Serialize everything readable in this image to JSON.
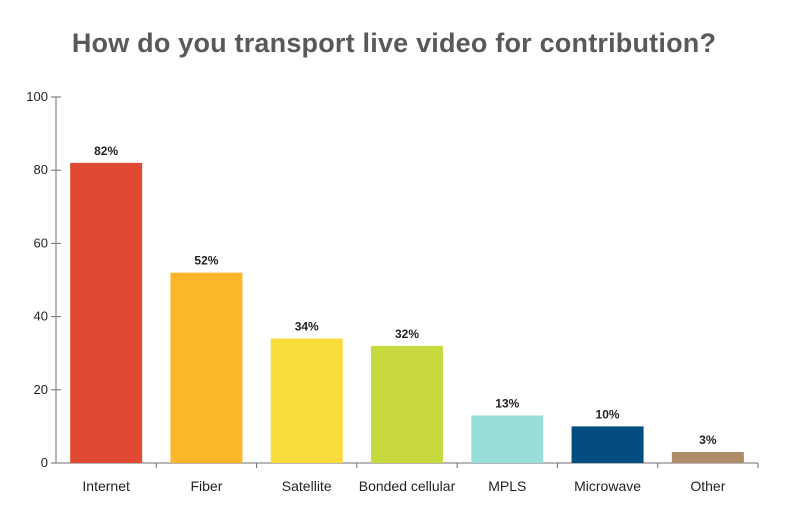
{
  "chart_data": {
    "type": "bar",
    "title": "How do you transport live video for contribution?",
    "xlabel": "",
    "ylabel": "",
    "ylim": [
      0,
      100
    ],
    "yticks": [
      0,
      20,
      40,
      60,
      80,
      100
    ],
    "categories": [
      "Internet",
      "Fiber",
      "Satellite",
      "Bonded cellular",
      "MPLS",
      "Microwave",
      "Other"
    ],
    "values": [
      82,
      52,
      34,
      32,
      13,
      10,
      3
    ],
    "data_labels": [
      "82%",
      "52%",
      "34%",
      "32%",
      "13%",
      "10%",
      "3%"
    ],
    "colors": [
      "#e04a32",
      "#fbb629",
      "#f9dc3a",
      "#c8d93f",
      "#9adedc",
      "#034d80",
      "#ae8c68"
    ],
    "grid": false,
    "legend": "none"
  }
}
